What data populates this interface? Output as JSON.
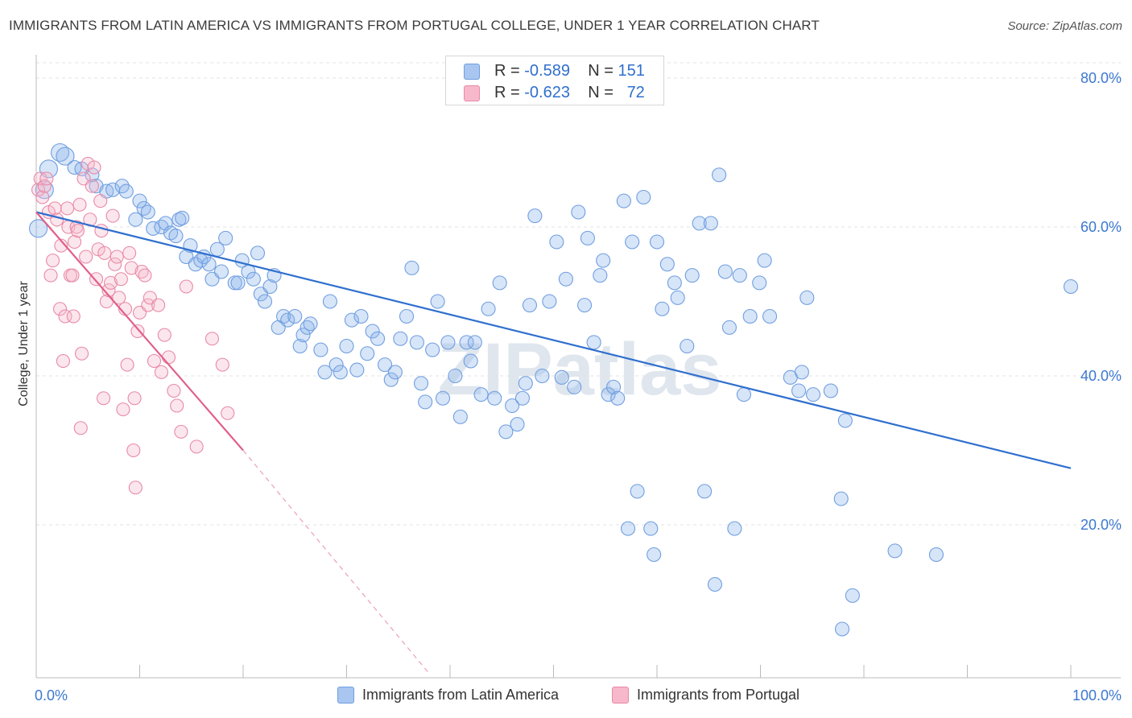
{
  "title": "IMMIGRANTS FROM LATIN AMERICA VS IMMIGRANTS FROM PORTUGAL COLLEGE, UNDER 1 YEAR CORRELATION CHART",
  "source": "Source: ZipAtlas.com",
  "watermark": "ZIPatlas",
  "legend": {
    "rows": [
      {
        "r_label": "R =",
        "r_value": "-0.589",
        "n_label": "N =",
        "n_value": "151",
        "color": "#a9c6f0",
        "border": "#6f9ee0"
      },
      {
        "r_label": "R =",
        "r_value": "-0.623",
        "n_label": "N =",
        "n_value": "72",
        "color": "#f7b8cb",
        "border": "#e889a6"
      }
    ]
  },
  "bottom_legend": {
    "items": [
      {
        "label": "Immigrants from Latin America",
        "color": "#a9c6f0",
        "border": "#6f9ee0"
      },
      {
        "label": "Immigrants from Portugal",
        "color": "#f7b8cb",
        "border": "#e889a6"
      }
    ]
  },
  "chart_data": {
    "type": "scatter",
    "title": "IMMIGRANTS FROM LATIN AMERICA VS IMMIGRANTS FROM PORTUGAL COLLEGE, UNDER 1 YEAR CORRELATION CHART",
    "xlabel": "",
    "ylabel": "College, Under 1 year",
    "xlim": [
      0,
      100
    ],
    "ylim": [
      0,
      82
    ],
    "x_tick_labels": [
      "0.0%",
      "100.0%"
    ],
    "y_ticks": [
      20,
      40,
      60,
      80
    ],
    "y_tick_labels": [
      "20.0%",
      "40.0%",
      "60.0%",
      "80.0%"
    ],
    "grid": true,
    "legend_placement": "top-center",
    "series": [
      {
        "name": "Immigrants from Latin America",
        "color": "#6f9ee0",
        "fill": "rgba(140,180,235,0.35)",
        "trend": {
          "x": [
            0,
            100
          ],
          "y": [
            62.0,
            27.6
          ],
          "color": "#2f6fce"
        },
        "points": [
          [
            0.2,
            59.8
          ],
          [
            0.8,
            65.0
          ],
          [
            1.2,
            67.8
          ],
          [
            2.3,
            70.0
          ],
          [
            2.8,
            69.5
          ],
          [
            3.7,
            68.0
          ],
          [
            4.4,
            67.8
          ],
          [
            5.4,
            67.0
          ],
          [
            5.8,
            65.5
          ],
          [
            6.8,
            64.8
          ],
          [
            7.4,
            65.0
          ],
          [
            8.3,
            65.5
          ],
          [
            8.7,
            64.8
          ],
          [
            9.6,
            61.0
          ],
          [
            10.0,
            63.5
          ],
          [
            10.4,
            62.5
          ],
          [
            10.8,
            62.0
          ],
          [
            11.3,
            59.8
          ],
          [
            12.1,
            60.0
          ],
          [
            12.5,
            60.5
          ],
          [
            13.0,
            59.2
          ],
          [
            13.5,
            58.8
          ],
          [
            13.8,
            61.0
          ],
          [
            14.1,
            61.2
          ],
          [
            14.5,
            56.0
          ],
          [
            14.9,
            57.5
          ],
          [
            15.4,
            55.0
          ],
          [
            15.9,
            55.5
          ],
          [
            16.2,
            56.0
          ],
          [
            16.7,
            55.0
          ],
          [
            17.0,
            53.0
          ],
          [
            17.5,
            57.0
          ],
          [
            17.9,
            54.0
          ],
          [
            18.3,
            58.5
          ],
          [
            19.2,
            52.5
          ],
          [
            19.5,
            52.5
          ],
          [
            19.9,
            55.5
          ],
          [
            20.5,
            54.0
          ],
          [
            21.0,
            53.0
          ],
          [
            21.4,
            56.5
          ],
          [
            21.7,
            51.0
          ],
          [
            22.1,
            50.0
          ],
          [
            22.6,
            52.0
          ],
          [
            23.0,
            53.5
          ],
          [
            23.4,
            46.5
          ],
          [
            23.9,
            48.0
          ],
          [
            24.3,
            47.5
          ],
          [
            25.0,
            48.0
          ],
          [
            25.5,
            44.0
          ],
          [
            25.8,
            45.5
          ],
          [
            26.2,
            46.5
          ],
          [
            26.5,
            47.0
          ],
          [
            27.5,
            43.5
          ],
          [
            27.9,
            40.5
          ],
          [
            28.4,
            50.0
          ],
          [
            29.0,
            41.5
          ],
          [
            29.4,
            40.5
          ],
          [
            30.0,
            44.0
          ],
          [
            30.5,
            47.5
          ],
          [
            31.0,
            40.8
          ],
          [
            31.4,
            48.0
          ],
          [
            32.0,
            43.0
          ],
          [
            32.5,
            46.0
          ],
          [
            33.0,
            45.0
          ],
          [
            33.7,
            41.5
          ],
          [
            34.3,
            39.5
          ],
          [
            34.7,
            40.5
          ],
          [
            35.2,
            45.0
          ],
          [
            35.8,
            48.0
          ],
          [
            36.3,
            54.5
          ],
          [
            36.8,
            44.5
          ],
          [
            37.2,
            39.0
          ],
          [
            37.6,
            36.5
          ],
          [
            38.3,
            43.5
          ],
          [
            38.8,
            50.0
          ],
          [
            39.3,
            37.0
          ],
          [
            39.8,
            44.5
          ],
          [
            40.5,
            40.0
          ],
          [
            41.0,
            34.5
          ],
          [
            41.6,
            44.5
          ],
          [
            42.0,
            42.0
          ],
          [
            42.4,
            44.5
          ],
          [
            43.0,
            37.5
          ],
          [
            43.7,
            49.0
          ],
          [
            44.3,
            37.0
          ],
          [
            44.8,
            52.5
          ],
          [
            45.4,
            32.5
          ],
          [
            46.0,
            36.0
          ],
          [
            46.5,
            33.5
          ],
          [
            47.0,
            37.0
          ],
          [
            47.3,
            39.0
          ],
          [
            47.7,
            49.5
          ],
          [
            48.2,
            61.5
          ],
          [
            48.9,
            40.0
          ],
          [
            49.6,
            50.0
          ],
          [
            50.3,
            58.0
          ],
          [
            50.8,
            39.8
          ],
          [
            51.2,
            53.0
          ],
          [
            52.0,
            38.5
          ],
          [
            52.4,
            62.0
          ],
          [
            53.0,
            49.5
          ],
          [
            53.3,
            58.5
          ],
          [
            53.9,
            44.5
          ],
          [
            54.5,
            53.5
          ],
          [
            54.8,
            55.5
          ],
          [
            55.3,
            37.5
          ],
          [
            55.8,
            38.5
          ],
          [
            56.2,
            37.0
          ],
          [
            56.8,
            63.5
          ],
          [
            57.2,
            19.5
          ],
          [
            57.6,
            58.0
          ],
          [
            58.1,
            24.5
          ],
          [
            58.7,
            64.0
          ],
          [
            59.4,
            19.5
          ],
          [
            59.7,
            16.0
          ],
          [
            60.0,
            58.0
          ],
          [
            60.5,
            49.0
          ],
          [
            61.0,
            55.0
          ],
          [
            61.7,
            52.5
          ],
          [
            62.0,
            50.5
          ],
          [
            62.9,
            44.0
          ],
          [
            63.4,
            53.5
          ],
          [
            64.1,
            60.5
          ],
          [
            64.6,
            24.5
          ],
          [
            65.2,
            60.5
          ],
          [
            65.6,
            12.0
          ],
          [
            66.0,
            67.0
          ],
          [
            66.6,
            54.0
          ],
          [
            67.0,
            46.5
          ],
          [
            67.5,
            19.5
          ],
          [
            68.0,
            53.5
          ],
          [
            68.4,
            37.5
          ],
          [
            69.0,
            48.0
          ],
          [
            69.9,
            52.5
          ],
          [
            70.4,
            55.5
          ],
          [
            70.9,
            48.0
          ],
          [
            72.9,
            39.8
          ],
          [
            73.7,
            38.0
          ],
          [
            74.0,
            40.5
          ],
          [
            74.5,
            50.5
          ],
          [
            75.1,
            37.5
          ],
          [
            76.8,
            38.0
          ],
          [
            77.8,
            23.5
          ],
          [
            77.9,
            6.0
          ],
          [
            78.2,
            34.0
          ],
          [
            78.9,
            10.5
          ],
          [
            83.0,
            16.5
          ],
          [
            87.0,
            16.0
          ],
          [
            100.0,
            52.0
          ]
        ]
      },
      {
        "name": "Immigrants from Portugal",
        "color": "#e889a6",
        "fill": "rgba(247,184,203,0.35)",
        "trend": {
          "x": [
            0,
            20
          ],
          "y": [
            62.0,
            30.0
          ],
          "color": "#e0608a",
          "dashed_extension_to": [
            38,
            0
          ]
        },
        "points": [
          [
            0.2,
            65.0
          ],
          [
            0.4,
            66.5
          ],
          [
            0.6,
            64.0
          ],
          [
            0.8,
            65.5
          ],
          [
            1.0,
            66.5
          ],
          [
            1.2,
            62.0
          ],
          [
            1.4,
            53.5
          ],
          [
            1.6,
            55.5
          ],
          [
            1.8,
            62.5
          ],
          [
            2.0,
            61.0
          ],
          [
            2.3,
            49.0
          ],
          [
            2.4,
            57.5
          ],
          [
            2.6,
            42.0
          ],
          [
            2.8,
            48.0
          ],
          [
            3.0,
            62.5
          ],
          [
            3.1,
            60.0
          ],
          [
            3.3,
            53.5
          ],
          [
            3.5,
            53.5
          ],
          [
            3.6,
            48.0
          ],
          [
            3.7,
            58.0
          ],
          [
            3.9,
            60.0
          ],
          [
            4.0,
            59.5
          ],
          [
            4.2,
            63.0
          ],
          [
            4.3,
            33.0
          ],
          [
            4.4,
            43.0
          ],
          [
            4.6,
            66.5
          ],
          [
            4.8,
            56.0
          ],
          [
            5.0,
            68.5
          ],
          [
            5.2,
            61.0
          ],
          [
            5.4,
            65.5
          ],
          [
            5.6,
            68.0
          ],
          [
            5.8,
            53.0
          ],
          [
            6.0,
            57.0
          ],
          [
            6.2,
            63.5
          ],
          [
            6.3,
            59.5
          ],
          [
            6.5,
            37.0
          ],
          [
            6.6,
            56.5
          ],
          [
            6.8,
            50.0
          ],
          [
            7.0,
            51.5
          ],
          [
            7.2,
            52.5
          ],
          [
            7.4,
            61.5
          ],
          [
            7.6,
            55.0
          ],
          [
            7.8,
            56.0
          ],
          [
            8.0,
            50.5
          ],
          [
            8.2,
            53.0
          ],
          [
            8.4,
            35.5
          ],
          [
            8.6,
            49.0
          ],
          [
            8.8,
            41.5
          ],
          [
            9.0,
            56.5
          ],
          [
            9.2,
            54.5
          ],
          [
            9.4,
            30.0
          ],
          [
            9.5,
            37.0
          ],
          [
            9.6,
            25.0
          ],
          [
            9.8,
            46.0
          ],
          [
            10.0,
            48.5
          ],
          [
            10.2,
            54.0
          ],
          [
            10.5,
            53.5
          ],
          [
            10.8,
            49.5
          ],
          [
            11.0,
            50.5
          ],
          [
            11.4,
            42.0
          ],
          [
            11.8,
            49.5
          ],
          [
            12.1,
            40.5
          ],
          [
            12.4,
            45.5
          ],
          [
            12.8,
            42.5
          ],
          [
            13.3,
            38.0
          ],
          [
            13.6,
            36.0
          ],
          [
            14.0,
            32.5
          ],
          [
            14.5,
            52.0
          ],
          [
            15.5,
            30.5
          ],
          [
            17.0,
            45.0
          ],
          [
            18.0,
            41.5
          ],
          [
            18.5,
            35.0
          ]
        ]
      }
    ]
  }
}
